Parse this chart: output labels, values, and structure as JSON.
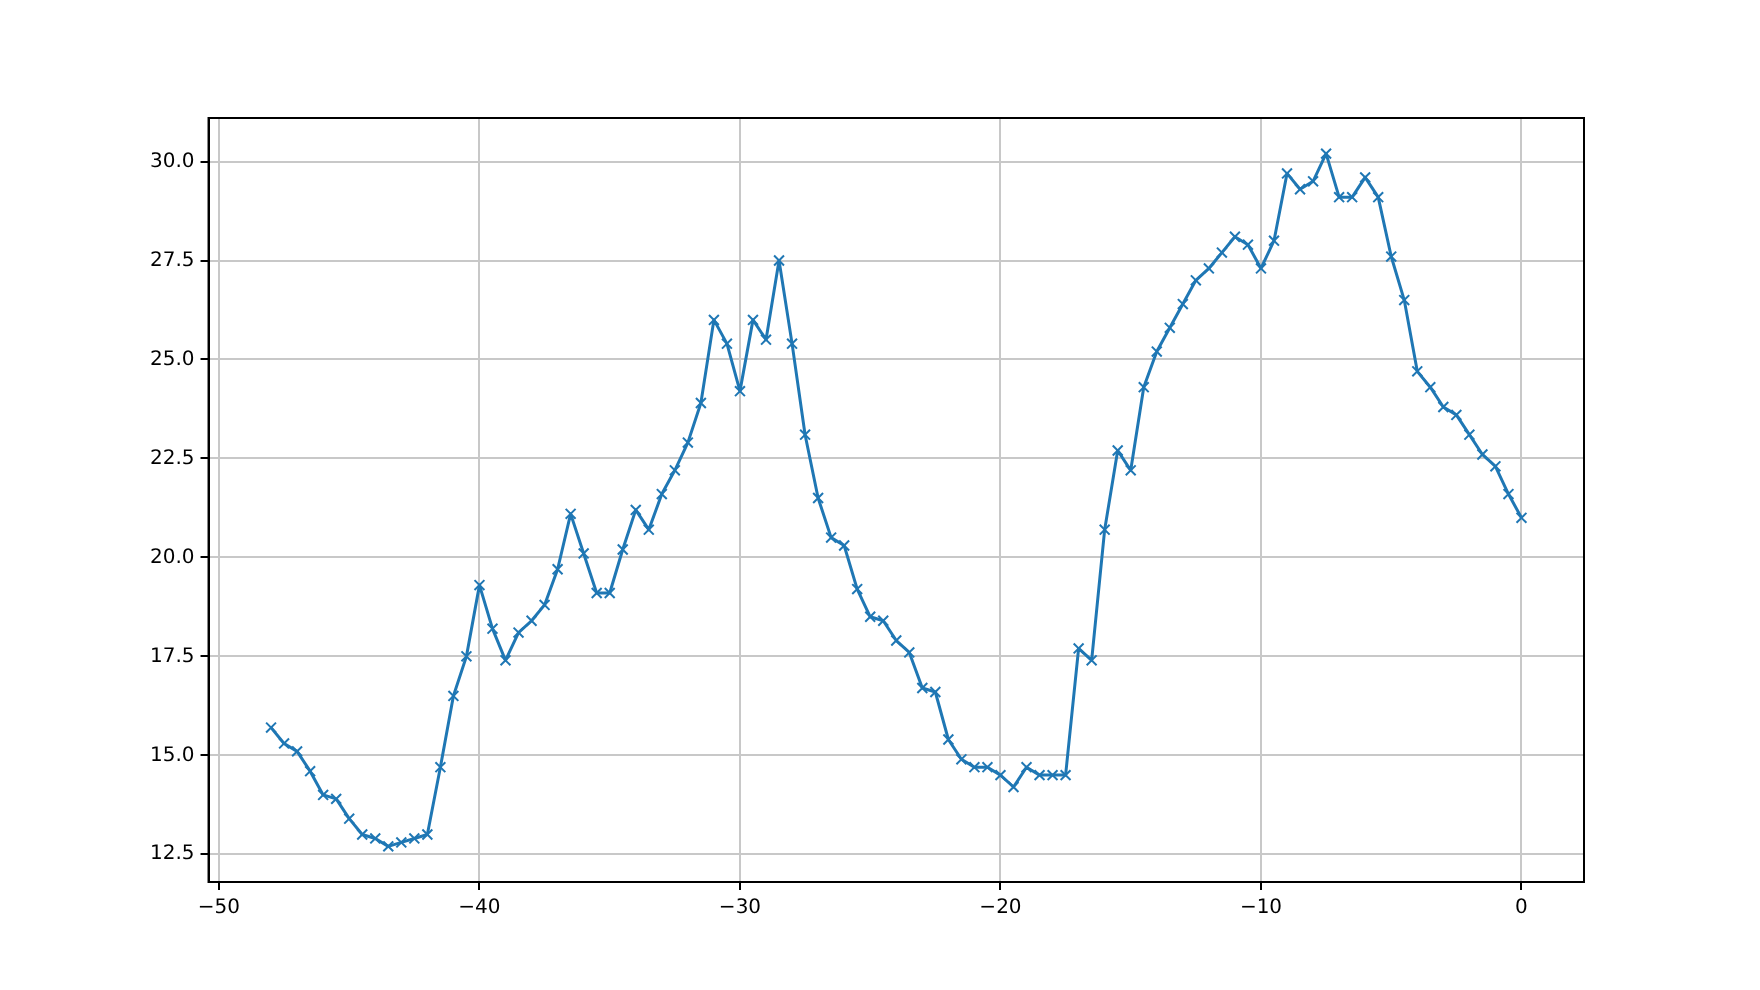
{
  "chart_data": {
    "type": "line",
    "x": [
      -48,
      -47.5,
      -47,
      -46.5,
      -46,
      -45.5,
      -45,
      -44.5,
      -44,
      -43.5,
      -43,
      -42.5,
      -42,
      -41.5,
      -41,
      -40.5,
      -40,
      -39.5,
      -39,
      -38.5,
      -38,
      -37.5,
      -37,
      -36.5,
      -36,
      -35.5,
      -35,
      -34.5,
      -34,
      -33.5,
      -33,
      -32.5,
      -32,
      -31.5,
      -31,
      -30.5,
      -30,
      -29.5,
      -29,
      -28.5,
      -28,
      -27.5,
      -27,
      -26.5,
      -26,
      -25.5,
      -25,
      -24.5,
      -24,
      -23.5,
      -23,
      -22.5,
      -22,
      -21.5,
      -21,
      -20.5,
      -20,
      -19.5,
      -19,
      -18.5,
      -18,
      -17.5,
      -17,
      -16.5,
      -16,
      -15.5,
      -15,
      -14.5,
      -14,
      -13.5,
      -13,
      -12.5,
      -12,
      -11.5,
      -11,
      -10.5,
      -10,
      -9.5,
      -9,
      -8.5,
      -8,
      -7.5,
      -7,
      -6.5,
      -6,
      -5.5,
      -5,
      -4.5,
      -4,
      -3.5,
      -3,
      -2.5,
      -2,
      -1.5,
      -1,
      -0.5,
      0
    ],
    "series": [
      {
        "color": "#1f77b4",
        "values": [
          15.7,
          15.3,
          15.1,
          14.6,
          14.0,
          13.9,
          13.4,
          13.0,
          12.9,
          12.7,
          12.8,
          12.9,
          13.0,
          14.7,
          16.5,
          17.5,
          19.3,
          18.2,
          17.4,
          18.1,
          18.4,
          18.8,
          19.7,
          21.1,
          20.1,
          19.1,
          19.1,
          20.2,
          21.2,
          20.7,
          21.6,
          22.2,
          22.9,
          23.9,
          26.0,
          25.4,
          24.2,
          26.0,
          25.5,
          27.5,
          25.4,
          23.1,
          21.5,
          20.5,
          20.3,
          19.2,
          18.5,
          18.4,
          17.9,
          17.6,
          16.7,
          16.6,
          15.4,
          14.9,
          14.7,
          14.7,
          14.5,
          14.2,
          14.7,
          14.5,
          14.5,
          14.5,
          17.7,
          17.4,
          20.7,
          22.7,
          22.2,
          24.3,
          25.2,
          25.8,
          26.4,
          27.0,
          27.3,
          27.7,
          28.1,
          27.9,
          27.3,
          28.0,
          29.7,
          29.3,
          29.5,
          30.2,
          29.1,
          29.1,
          29.6,
          29.1,
          27.6,
          26.5,
          24.7,
          24.3,
          23.8,
          23.6,
          23.1,
          22.6,
          22.3,
          21.6,
          21.0
        ]
      }
    ],
    "xlim": [
      -50.4,
      2.4
    ],
    "xticks": [
      {
        "value": -50,
        "label": "−50"
      },
      {
        "value": -40,
        "label": "−40"
      },
      {
        "value": -30,
        "label": "−30"
      },
      {
        "value": -20,
        "label": "−20"
      },
      {
        "value": -10,
        "label": "−10"
      },
      0
    ],
    "ylim": [
      11.8,
      31.1
    ],
    "yticks": [
      12.5,
      {
        "value": 15,
        "label": "15.0"
      },
      17.5,
      {
        "value": 20,
        "label": "20.0"
      },
      22.5,
      {
        "value": 25,
        "label": "25.0"
      },
      27.5,
      {
        "value": 30,
        "label": "30.0"
      }
    ],
    "grid": true,
    "marker": "cross",
    "line_style": "solid"
  }
}
